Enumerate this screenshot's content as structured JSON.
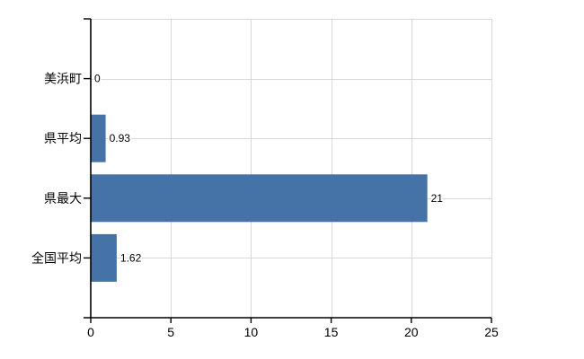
{
  "chart_data": {
    "type": "bar",
    "orientation": "horizontal",
    "title": "",
    "xlabel": "",
    "ylabel": "",
    "categories": [
      "美浜町",
      "県平均",
      "県最大",
      "全国平均"
    ],
    "values": [
      0,
      0.93,
      21,
      1.62
    ],
    "value_labels": [
      "0",
      "0.93",
      "21",
      "1.62"
    ],
    "xlim": [
      0,
      25
    ],
    "xticks": [
      0,
      5,
      10,
      15,
      20,
      25
    ],
    "xtick_labels": [
      "0",
      "5",
      "10",
      "15",
      "20",
      "25"
    ],
    "grid": true,
    "legend": "none",
    "colors": {
      "bar": "#4572a7",
      "grid": "#d9d9d9",
      "axis": "#000000",
      "text": "#000000",
      "value_halo": "#ffffff",
      "background": "#ffffff"
    }
  }
}
